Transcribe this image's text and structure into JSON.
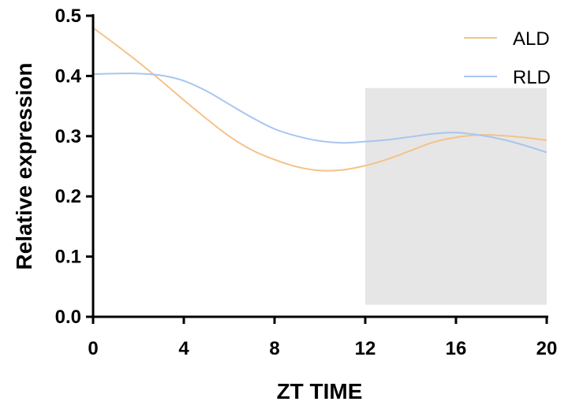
{
  "chart_data": {
    "type": "line",
    "xlabel": "ZT TIME",
    "ylabel": "Relative expression",
    "xlim": [
      0,
      20
    ],
    "ylim": [
      0,
      0.5
    ],
    "xticks": [
      "0",
      "4",
      "8",
      "12",
      "16",
      "20"
    ],
    "yticks": [
      "0.0",
      "0.1",
      "0.2",
      "0.3",
      "0.4",
      "0.5"
    ],
    "shaded_region": {
      "x": [
        12,
        20
      ],
      "y": [
        0.02,
        0.38
      ],
      "color": "#e6e6e6"
    },
    "legend_position": "top-right",
    "series": [
      {
        "name": "ALD",
        "color": "#f5c28a",
        "points": [
          [
            0,
            0.48
          ],
          [
            1,
            0.452
          ],
          [
            2,
            0.423
          ],
          [
            3,
            0.392
          ],
          [
            4,
            0.36
          ],
          [
            5,
            0.329
          ],
          [
            6,
            0.3
          ],
          [
            7,
            0.277
          ],
          [
            8,
            0.261
          ],
          [
            9,
            0.249
          ],
          [
            10,
            0.243
          ],
          [
            11,
            0.244
          ],
          [
            12,
            0.251
          ],
          [
            13,
            0.262
          ],
          [
            14,
            0.276
          ],
          [
            15,
            0.29
          ],
          [
            16,
            0.298
          ],
          [
            17,
            0.302
          ],
          [
            18,
            0.301
          ],
          [
            19,
            0.298
          ],
          [
            20,
            0.293
          ]
        ]
      },
      {
        "name": "RLD",
        "color": "#a9c5ef",
        "points": [
          [
            0,
            0.403
          ],
          [
            1,
            0.404
          ],
          [
            2,
            0.404
          ],
          [
            3,
            0.401
          ],
          [
            4,
            0.392
          ],
          [
            5,
            0.375
          ],
          [
            6,
            0.353
          ],
          [
            7,
            0.331
          ],
          [
            8,
            0.312
          ],
          [
            9,
            0.3
          ],
          [
            10,
            0.292
          ],
          [
            11,
            0.289
          ],
          [
            12,
            0.291
          ],
          [
            13,
            0.294
          ],
          [
            14,
            0.299
          ],
          [
            15,
            0.304
          ],
          [
            16,
            0.306
          ],
          [
            17,
            0.302
          ],
          [
            18,
            0.295
          ],
          [
            19,
            0.285
          ],
          [
            20,
            0.273
          ]
        ]
      }
    ]
  }
}
